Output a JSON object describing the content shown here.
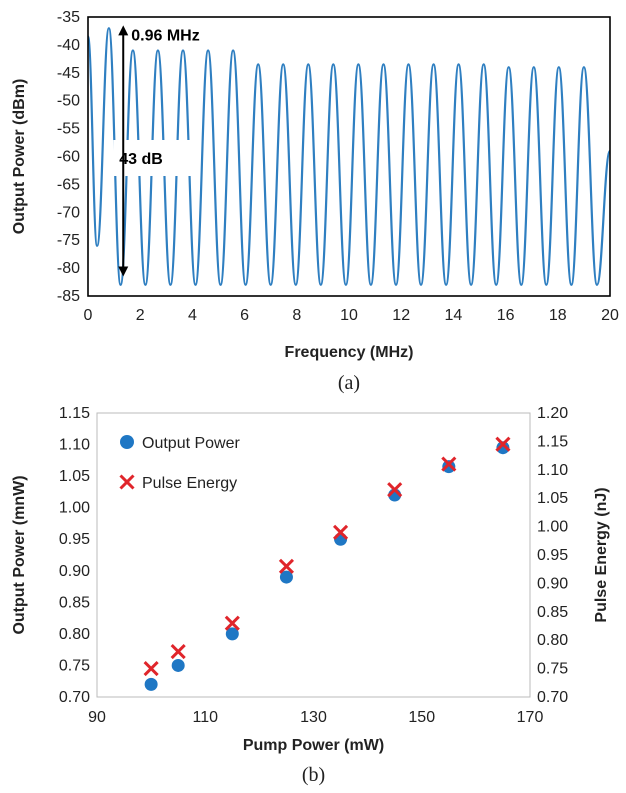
{
  "chart_data": [
    {
      "id": "a",
      "type": "line",
      "caption": "(a)",
      "xlabel": "Frequency (MHz)",
      "ylabel": "Output Power (dBm)",
      "xlim": [
        0,
        20
      ],
      "ylim": [
        -85,
        -35
      ],
      "xticks": [
        "0",
        "2",
        "4",
        "6",
        "8",
        "10",
        "12",
        "14",
        "16",
        "18",
        "20"
      ],
      "yticks": [
        "-35",
        "-40",
        "-45",
        "-50",
        "-55",
        "-60",
        "-65",
        "-70",
        "-75",
        "-80",
        "-85"
      ],
      "grid": false,
      "line_color": "#2f7fc1",
      "peak_spacing_mhz": 0.96,
      "series": [
        {
          "peaks": [
            [
              0.0,
              -38.5
            ],
            [
              0.8,
              -37.0
            ],
            [
              1.72,
              -41.0
            ],
            [
              2.68,
              -41.0
            ],
            [
              3.64,
              -41.0
            ],
            [
              4.6,
              -41.0
            ],
            [
              5.56,
              -41.0
            ],
            [
              6.52,
              -43.5
            ],
            [
              7.48,
              -43.5
            ],
            [
              8.44,
              -43.5
            ],
            [
              9.4,
              -43.5
            ],
            [
              10.36,
              -43.5
            ],
            [
              11.32,
              -43.5
            ],
            [
              12.28,
              -43.5
            ],
            [
              13.24,
              -43.5
            ],
            [
              14.2,
              -43.5
            ],
            [
              15.16,
              -43.5
            ],
            [
              16.12,
              -44.0
            ],
            [
              17.08,
              -44.0
            ],
            [
              18.04,
              -44.0
            ],
            [
              19.0,
              -44.0
            ],
            [
              20.0,
              -59.0
            ]
          ],
          "troughs": [
            [
              0.35,
              -76.0
            ],
            [
              1.25,
              -83.0
            ],
            [
              2.2,
              -83.0
            ],
            [
              3.16,
              -83.0
            ],
            [
              4.12,
              -83.0
            ],
            [
              5.08,
              -83.0
            ],
            [
              6.04,
              -83.0
            ],
            [
              7.0,
              -83.0
            ],
            [
              7.96,
              -83.0
            ],
            [
              8.92,
              -83.0
            ],
            [
              9.88,
              -83.0
            ],
            [
              10.84,
              -83.0
            ],
            [
              11.8,
              -83.0
            ],
            [
              12.76,
              -83.0
            ],
            [
              13.72,
              -83.0
            ],
            [
              14.68,
              -83.0
            ],
            [
              15.64,
              -83.0
            ],
            [
              16.6,
              -83.0
            ],
            [
              17.56,
              -83.0
            ],
            [
              18.52,
              -83.0
            ],
            [
              19.5,
              -83.0
            ]
          ]
        }
      ],
      "annotations": {
        "spacing_label": "0.96 MHz",
        "depth_label": "43 dB",
        "arrow_x": 1.35,
        "arrow_y_range": [
          -81.5,
          -36.5
        ]
      }
    },
    {
      "id": "b",
      "type": "scatter",
      "caption": "(b)",
      "xlabel": "Pump Power (mW)",
      "ylabel": "Output Power (mnW)",
      "y2label": "Pulse Energy (nJ)",
      "xlim": [
        90,
        170
      ],
      "ylim": [
        0.7,
        1.15
      ],
      "y2lim": [
        0.7,
        1.2
      ],
      "xticks": [
        "90",
        "110",
        "130",
        "150",
        "170"
      ],
      "yticks": [
        "1.15",
        "1.10",
        "1.05",
        "1.00",
        "0.95",
        "0.90",
        "0.85",
        "0.80",
        "0.75",
        "0.70"
      ],
      "y2ticks": [
        "1.20",
        "1.15",
        "1.10",
        "1.05",
        "1.00",
        "0.95",
        "0.90",
        "0.85",
        "0.80",
        "0.75",
        "0.70"
      ],
      "grid": false,
      "legend_position": "top-left",
      "series": [
        {
          "name": "Output Power",
          "marker": "circle",
          "color": "#1f77c4",
          "axis": "left",
          "x": [
            100,
            105,
            115,
            125,
            135,
            145,
            155,
            165
          ],
          "y": [
            0.72,
            0.75,
            0.8,
            0.89,
            0.95,
            1.02,
            1.065,
            1.095
          ]
        },
        {
          "name": "Pulse Energy",
          "marker": "x",
          "color": "#e0252b",
          "axis": "right",
          "x": [
            100,
            105,
            115,
            125,
            135,
            145,
            155,
            165
          ],
          "y": [
            0.75,
            0.78,
            0.83,
            0.93,
            0.99,
            1.065,
            1.11,
            1.145
          ]
        }
      ]
    }
  ]
}
